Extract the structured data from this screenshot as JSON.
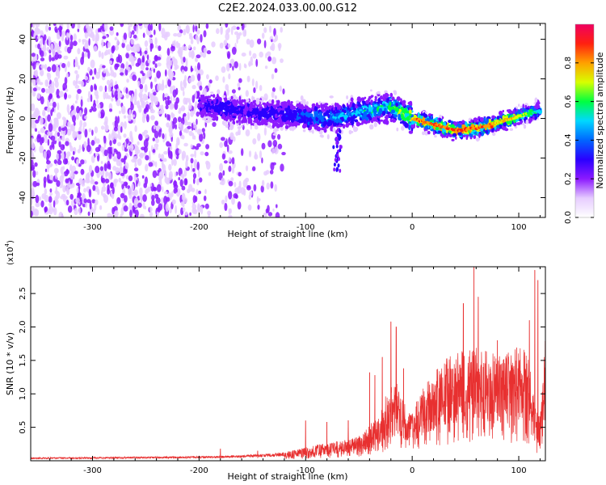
{
  "figure": {
    "title": "C2E2.2024.033.00.00.G12"
  },
  "chart_data": [
    {
      "type": "heatmap",
      "xlabel": "Height of straight line (km)",
      "ylabel": "Frequency (Hz)",
      "xlim": [
        -358,
        125
      ],
      "ylim": [
        -50,
        48
      ],
      "xticks": [
        -300,
        -200,
        -100,
        0,
        100
      ],
      "xtick_labels": [
        "-300",
        "-200",
        "-100",
        "0",
        "100"
      ],
      "yticks": [
        -40,
        -20,
        0,
        20,
        40
      ],
      "ytick_labels": [
        "-40",
        "-20",
        "0",
        "20",
        "40"
      ],
      "colorbar": {
        "label": "Normalized spectral amplitude",
        "range": [
          0,
          1
        ],
        "ticks": [
          0.0,
          0.2,
          0.4,
          0.6,
          0.8
        ],
        "tick_labels": [
          "0.0",
          "0.2",
          "0.4",
          "0.6",
          "0.8"
        ],
        "colors": [
          "#ffffff",
          "#e6ccff",
          "#8c1aff",
          "#2a00ff",
          "#0066ff",
          "#00d8ff",
          "#00ff40",
          "#d8ff00",
          "#ffa000",
          "#ff2010",
          "#f00060"
        ]
      },
      "ridge": {
        "x": [
          -200,
          -180,
          -150,
          -120,
          -100,
          -80,
          -60,
          -40,
          -20,
          0,
          20,
          40,
          60,
          80,
          100,
          120
        ],
        "freq": [
          7,
          5,
          3,
          2,
          1,
          0,
          2,
          4,
          6,
          0,
          -3,
          -6,
          -5,
          -2,
          1,
          4
        ],
        "peak_amplitude": [
          0.3,
          0.35,
          0.3,
          0.35,
          0.4,
          0.45,
          0.5,
          0.55,
          0.6,
          0.8,
          0.85,
          0.9,
          0.88,
          0.8,
          0.75,
          0.5
        ]
      },
      "noise_region_x": [
        -358,
        -120
      ],
      "gap_x": [
        -190,
        -180
      ]
    },
    {
      "type": "line",
      "xlabel": "Height of straight line (km)",
      "ylabel": "SNR (10 * v/v)",
      "y_multiplier": "(x10",
      "y_multiplier_exp": "4",
      "y_multiplier_close": ")",
      "xlim": [
        -358,
        125
      ],
      "ylim": [
        0,
        2.9
      ],
      "xticks": [
        -300,
        -200,
        -100,
        0,
        100
      ],
      "xtick_labels": [
        "-300",
        "-200",
        "-100",
        "0",
        "100"
      ],
      "yticks": [
        0.5,
        1.0,
        1.5,
        2.0,
        2.5
      ],
      "ytick_labels": [
        "0.5",
        "1.0",
        "1.5",
        "2.0",
        "2.5"
      ],
      "line_color": "#e83030",
      "envelope": {
        "x": [
          -358,
          -250,
          -180,
          -160,
          -130,
          -110,
          -90,
          -70,
          -50,
          -40,
          -30,
          -25,
          -20,
          -15,
          -10,
          0,
          10,
          20,
          30,
          40,
          50,
          60,
          70,
          80,
          90,
          100,
          110,
          115,
          120,
          125
        ],
        "y": [
          0.04,
          0.05,
          0.06,
          0.07,
          0.09,
          0.12,
          0.18,
          0.22,
          0.28,
          0.4,
          0.55,
          0.75,
          0.85,
          0.9,
          0.7,
          0.55,
          0.85,
          1.0,
          1.15,
          1.2,
          1.25,
          1.3,
          1.25,
          1.2,
          1.25,
          1.3,
          1.2,
          0.6,
          0.5,
          1.4
        ]
      },
      "spikes": [
        {
          "x": -180,
          "y": 0.18
        },
        {
          "x": -145,
          "y": 0.15
        },
        {
          "x": -100,
          "y": 0.6
        },
        {
          "x": -80,
          "y": 0.58
        },
        {
          "x": -60,
          "y": 0.6
        },
        {
          "x": -40,
          "y": 1.32
        },
        {
          "x": -35,
          "y": 1.28
        },
        {
          "x": -28,
          "y": 1.55
        },
        {
          "x": -20,
          "y": 2.08
        },
        {
          "x": -15,
          "y": 2.0
        },
        {
          "x": -8,
          "y": 1.38
        },
        {
          "x": 48,
          "y": 2.35
        },
        {
          "x": 58,
          "y": 2.9
        },
        {
          "x": 62,
          "y": 2.45
        },
        {
          "x": 80,
          "y": 1.8
        },
        {
          "x": 110,
          "y": 2.1
        },
        {
          "x": 115,
          "y": 2.85
        },
        {
          "x": 118,
          "y": 2.7
        }
      ]
    }
  ]
}
